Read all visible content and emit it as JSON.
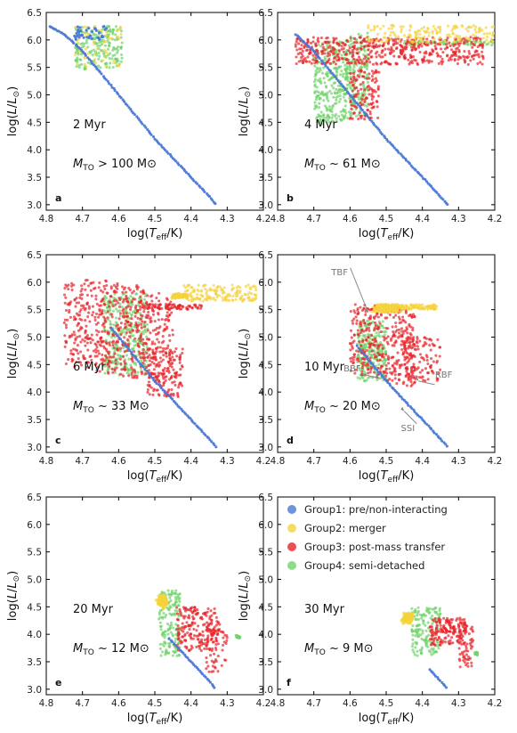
{
  "chart_data": {
    "type": "scatter",
    "xlabel": "log(T_eff/K)",
    "ylabel": "log(L/L⊙)",
    "x_ticks": [
      "4.8",
      "4.7",
      "4.6",
      "4.5",
      "4.4",
      "4.3",
      "4.2"
    ],
    "y_ticks": [
      "3.0",
      "3.5",
      "4.0",
      "4.5",
      "5.0",
      "5.5",
      "6.0",
      "6.5"
    ],
    "y_ticks_bottom": [
      "3.0",
      "3.5",
      "4.0",
      "4.5",
      "5.0",
      "5.5",
      "6.0",
      "6.5"
    ],
    "legend": {
      "placement": "top-right of panel f",
      "entries": [
        {
          "name": "Group1: pre/non-interacting",
          "color": "#4a78d6"
        },
        {
          "name": "Group2: merger",
          "color": "#f5d33c"
        },
        {
          "name": "Group3: post-mass transfer",
          "color": "#e8232a"
        },
        {
          "name": "Group4: semi-detached",
          "color": "#6fd36a"
        }
      ]
    },
    "panels": [
      {
        "label": "a",
        "age": "2 Myr",
        "mto_prefix": "M",
        "mto_sub": "TO",
        "mto_rel": " > ",
        "mto_value": "100",
        "mto_unit": " M⊙",
        "xlim": [
          4.8,
          4.2
        ],
        "ylim": [
          2.9,
          6.5
        ]
      },
      {
        "label": "b",
        "age": "4 Myr",
        "mto_prefix": "M",
        "mto_sub": "TO",
        "mto_rel": " ~ ",
        "mto_value": "61",
        "mto_unit": " M⊙",
        "xlim": [
          4.8,
          4.2
        ],
        "ylim": [
          2.9,
          6.5
        ]
      },
      {
        "label": "c",
        "age": "6 Myr",
        "mto_prefix": "M",
        "mto_sub": "TO",
        "mto_rel": " ~ ",
        "mto_value": "33",
        "mto_unit": " M⊙",
        "xlim": [
          4.8,
          4.2
        ],
        "ylim": [
          2.9,
          6.5
        ]
      },
      {
        "label": "d",
        "age": "10 Myr",
        "mto_prefix": "M",
        "mto_sub": "TO",
        "mto_rel": " ~ ",
        "mto_value": "20",
        "mto_unit": " M⊙",
        "xlim": [
          4.8,
          4.2
        ],
        "ylim": [
          2.9,
          6.5
        ],
        "annotations": [
          {
            "text": "TBF",
            "at": [
              4.55,
              5.45
            ]
          },
          {
            "text": "BBF",
            "at": [
              4.52,
              4.25
            ]
          },
          {
            "text": "RBF",
            "at": [
              4.41,
              4.2
            ]
          },
          {
            "text": "SSI",
            "at": [
              4.45,
              3.65
            ]
          }
        ]
      },
      {
        "label": "e",
        "age": "20 Myr",
        "mto_prefix": "M",
        "mto_sub": "TO",
        "mto_rel": " ~ ",
        "mto_value": "12",
        "mto_unit": " M⊙",
        "xlim": [
          4.8,
          4.2
        ],
        "ylim": [
          2.9,
          6.5
        ]
      },
      {
        "label": "f",
        "age": "30 Myr",
        "mto_prefix": "M",
        "mto_sub": "TO",
        "mto_rel": " ~ ",
        "mto_value": "9",
        "mto_unit": " M⊙",
        "xlim": [
          4.8,
          4.2
        ],
        "ylim": [
          2.9,
          6.5
        ]
      }
    ],
    "main_sequence": {
      "series": "Group1: pre/non-interacting",
      "color": "#4a78d6",
      "x": [
        4.8,
        4.75,
        4.7,
        4.65,
        4.6,
        4.55,
        4.5,
        4.45,
        4.4,
        4.35,
        4.33
      ],
      "y": [
        6.28,
        6.1,
        5.8,
        5.4,
        5.0,
        4.6,
        4.2,
        3.85,
        3.5,
        3.15,
        3.0
      ]
    }
  }
}
